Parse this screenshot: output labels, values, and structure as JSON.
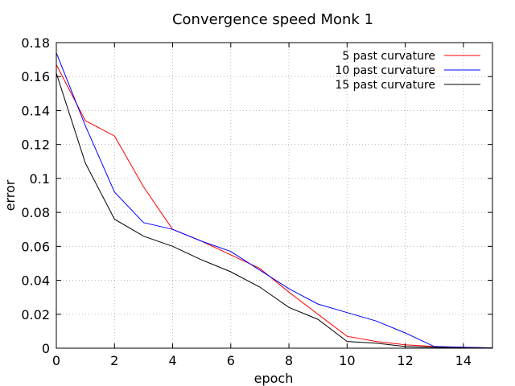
{
  "chart_data": {
    "type": "line",
    "title": "Convergence speed Monk 1",
    "xlabel": "epoch",
    "ylabel": "error",
    "xlim": [
      0,
      15
    ],
    "ylim": [
      0,
      0.18
    ],
    "x_ticks": [
      0,
      2,
      4,
      6,
      8,
      10,
      12,
      14
    ],
    "x_tick_labels": [
      "0",
      "2",
      "4",
      "6",
      "8",
      "10",
      "12",
      "14"
    ],
    "y_ticks": [
      0,
      0.02,
      0.04,
      0.06,
      0.08,
      0.1,
      0.12,
      0.14,
      0.16,
      0.18
    ],
    "y_tick_labels": [
      "0",
      "0.02",
      "0.04",
      "0.06",
      "0.08",
      "0.1",
      "0.12",
      "0.14",
      "0.16",
      "0.18"
    ],
    "grid": true,
    "legend_position": "top-right",
    "x": [
      0,
      1,
      2,
      3,
      4,
      5,
      6,
      7,
      8,
      9,
      10,
      11,
      12,
      13,
      14,
      15
    ],
    "series": [
      {
        "name": "5 past curvature",
        "color": "#ff0000",
        "values": [
          0.167,
          0.134,
          0.125,
          0.095,
          0.07,
          0.063,
          0.055,
          0.047,
          0.033,
          0.02,
          0.007,
          0.004,
          0.002,
          0.001,
          0.0005,
          0.0002
        ]
      },
      {
        "name": "10 past curvature",
        "color": "#0000ff",
        "values": [
          0.174,
          0.131,
          0.092,
          0.074,
          0.07,
          0.063,
          0.057,
          0.046,
          0.035,
          0.026,
          0.021,
          0.016,
          0.009,
          0.001,
          0.0005,
          0.0002
        ]
      },
      {
        "name": "15 past curvature",
        "color": "#000000",
        "values": [
          0.162,
          0.109,
          0.076,
          0.066,
          0.06,
          0.052,
          0.045,
          0.036,
          0.024,
          0.017,
          0.004,
          0.003,
          0.001,
          0.0005,
          0.0002,
          0.0001
        ]
      }
    ]
  }
}
